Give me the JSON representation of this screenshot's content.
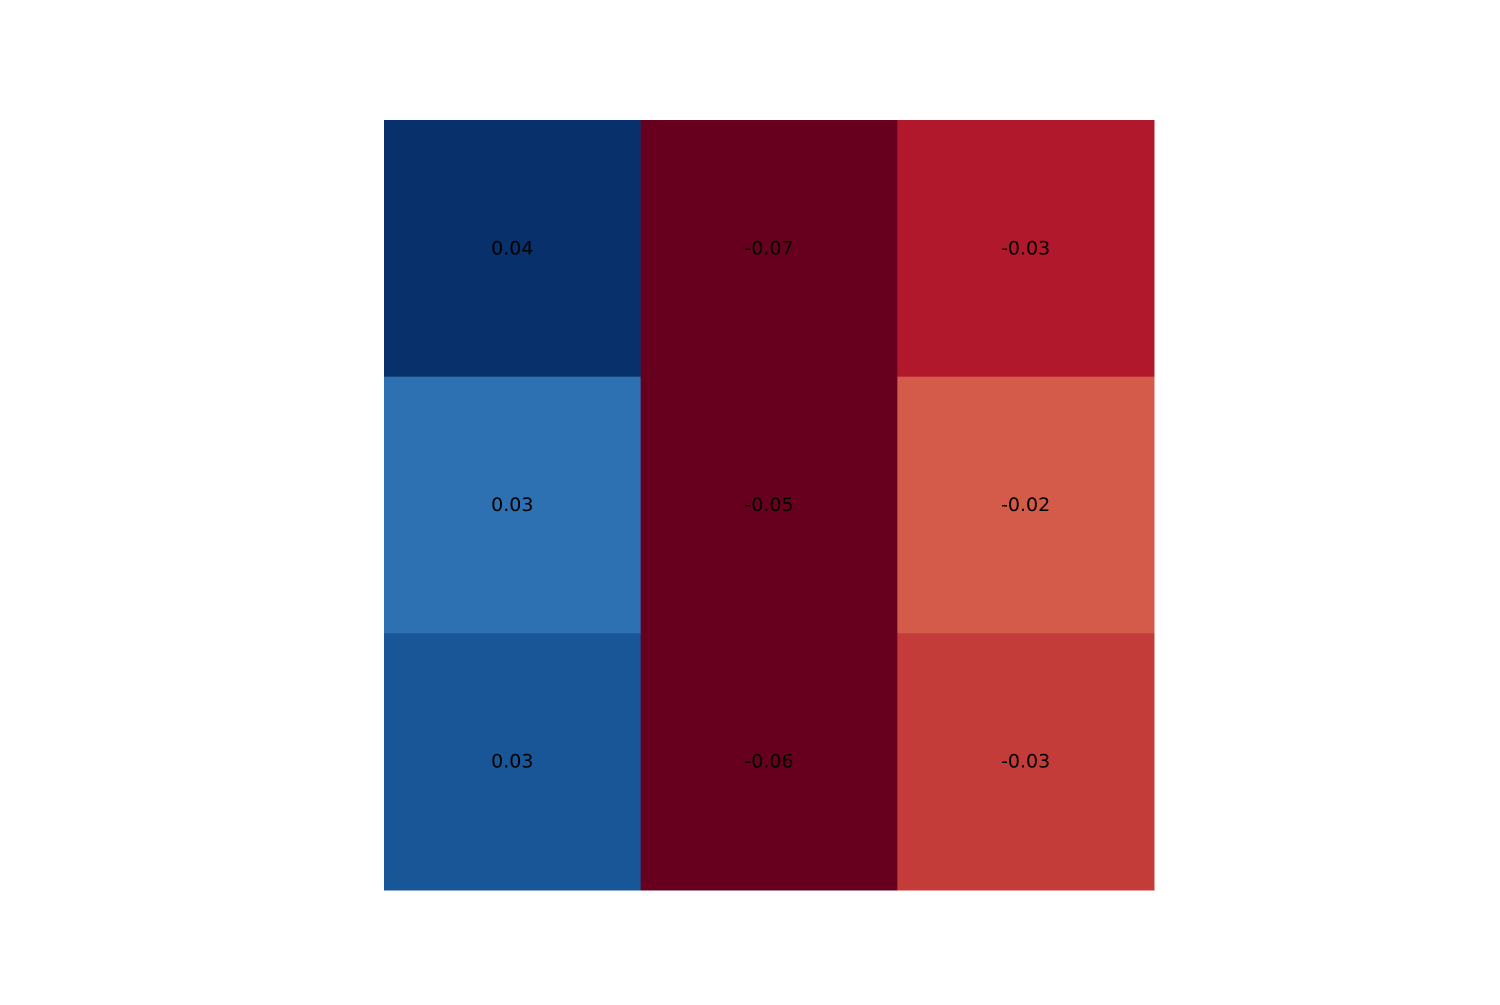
{
  "chart_data": {
    "type": "heatmap",
    "title": "",
    "xlabel": "",
    "ylabel": "",
    "rows": 3,
    "cols": 3,
    "values": [
      [
        0.04,
        -0.07,
        -0.03
      ],
      [
        0.03,
        -0.05,
        -0.02
      ],
      [
        0.03,
        -0.06,
        -0.03
      ]
    ],
    "cell_labels": [
      [
        "0.04",
        "-0.07",
        "-0.03"
      ],
      [
        "0.03",
        "-0.05",
        "-0.02"
      ],
      [
        "0.03",
        "-0.06",
        "-0.03"
      ]
    ],
    "cell_colors": [
      [
        "#08306b",
        "#67001f",
        "#b2182b"
      ],
      [
        "#2e71b2",
        "#67001f",
        "#d45a4a"
      ],
      [
        "#195697",
        "#67001f",
        "#c43c3a"
      ]
    ],
    "colormap": "RdBu",
    "grid": false,
    "axes_visible": false,
    "legend": "none",
    "label_color": "#000000"
  }
}
